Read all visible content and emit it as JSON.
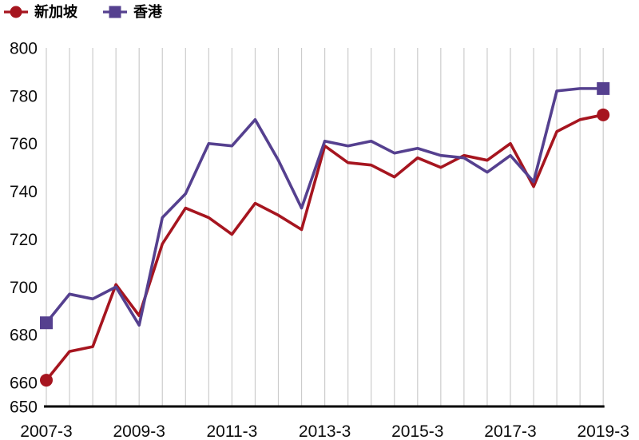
{
  "legend": {
    "items": [
      {
        "label": "新加坡",
        "marker": "circle"
      },
      {
        "label": "香港",
        "marker": "square"
      }
    ]
  },
  "chart_data": {
    "type": "line",
    "x": [
      "2007-3",
      "2007-9",
      "2008-3",
      "2008-9",
      "2009-3",
      "2009-9",
      "2010-3",
      "2010-9",
      "2011-3",
      "2011-9",
      "2012-3",
      "2012-9",
      "2013-3",
      "2013-9",
      "2014-3",
      "2014-9",
      "2015-3",
      "2015-9",
      "2016-3",
      "2016-9",
      "2017-3",
      "2017-9",
      "2018-3",
      "2018-9",
      "2019-3"
    ],
    "series": [
      {
        "name": "新加坡",
        "color": "#a6151f",
        "marker": "circle",
        "values": [
          661,
          673,
          675,
          701,
          688,
          718,
          733,
          729,
          722,
          735,
          730,
          724,
          759,
          752,
          751,
          746,
          754,
          750,
          755,
          753,
          760,
          742,
          765,
          770,
          772
        ]
      },
      {
        "name": "香港",
        "color": "#55408f",
        "marker": "square",
        "values": [
          685,
          697,
          695,
          700,
          684,
          729,
          739,
          760,
          759,
          770,
          753,
          733,
          761,
          759,
          761,
          756,
          758,
          755,
          754,
          748,
          755,
          744,
          782,
          783,
          783
        ]
      }
    ],
    "title": "",
    "xlabel": "",
    "ylabel": "",
    "ylim": [
      650,
      800
    ],
    "y_ticks": [
      650,
      660,
      680,
      700,
      720,
      740,
      760,
      780,
      800
    ],
    "x_tick_labels": [
      "2007-3",
      "2009-3",
      "2011-3",
      "2013-3",
      "2015-3",
      "2017-3",
      "2019-3"
    ],
    "x_tick_label_step": 4,
    "grid": "vertical-only",
    "gridline_color": "#cccccc",
    "axis_color": "#000000",
    "label_color": "#0d0d0d",
    "legend_position": "top-left",
    "markers": "endpoints-only"
  }
}
